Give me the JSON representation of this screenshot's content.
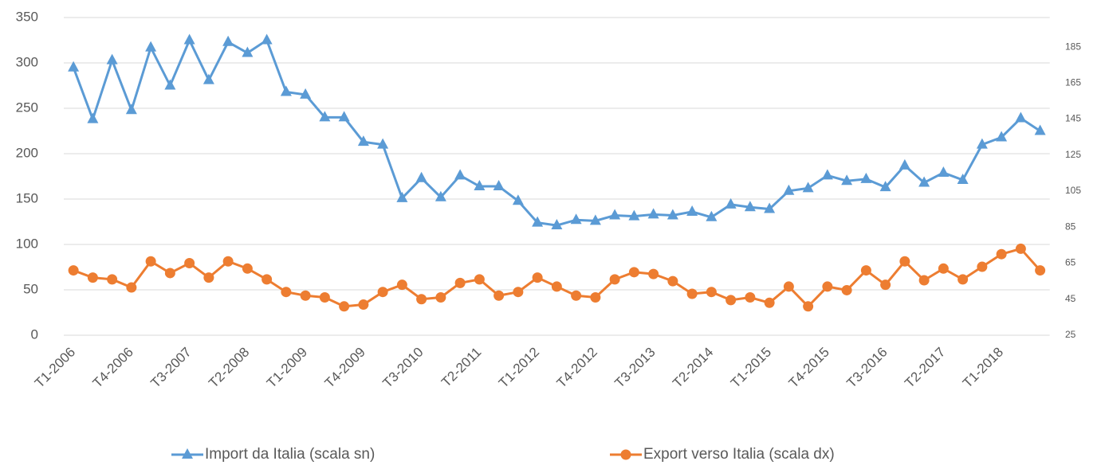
{
  "chart_data": {
    "type": "line",
    "categories": [
      "T1-2006",
      null,
      null,
      "T4-2006",
      null,
      null,
      "T3-2007",
      null,
      null,
      "T2-2008",
      null,
      null,
      "T1-2009",
      null,
      null,
      "T4-2009",
      null,
      null,
      "T3-2010",
      null,
      null,
      "T2-2011",
      null,
      null,
      "T1-2012",
      null,
      null,
      "T4-2012",
      null,
      null,
      "T3-2013",
      null,
      null,
      "T2-2014",
      null,
      null,
      "T1-2015",
      null,
      null,
      "T4-2015",
      null,
      null,
      "T3-2016",
      null,
      null,
      "T2-2017",
      null,
      null,
      "T1-2018",
      null,
      null
    ],
    "series": [
      {
        "name": "Import da Italia (scala sn)",
        "color": "#5b9bd5",
        "marker": "triangle",
        "axis": "y",
        "values": [
          295,
          238,
          303,
          248,
          317,
          275,
          325,
          281,
          323,
          311,
          325,
          268,
          265,
          240,
          240,
          213,
          210,
          151,
          173,
          152,
          176,
          164,
          164,
          148,
          124,
          121,
          127,
          126,
          132,
          131,
          133,
          132,
          136,
          130,
          144,
          141,
          139,
          159,
          162,
          176,
          170,
          172,
          163,
          187,
          168,
          179,
          171,
          210,
          218,
          239,
          225
        ]
      },
      {
        "name": "Export verso Italia (scala dx)",
        "color": "#ed7d31",
        "marker": "circle",
        "axis": "y2",
        "values": [
          61,
          57,
          56,
          51.5,
          66,
          59.5,
          65,
          57,
          66,
          62,
          56,
          49,
          47,
          46,
          41,
          42,
          49,
          53,
          45,
          46,
          54,
          56,
          47,
          49,
          57,
          52,
          47,
          46,
          56,
          60,
          59,
          55,
          48,
          49,
          44.5,
          46,
          43,
          52,
          41,
          52,
          50,
          61,
          53,
          66,
          55.5,
          62,
          56,
          63,
          70,
          73,
          61
        ]
      }
    ],
    "ylim": [
      0,
      350
    ],
    "yticks": [
      0,
      50,
      100,
      150,
      200,
      250,
      300,
      350
    ],
    "y2lim": [
      25,
      201.4
    ],
    "y2ticks": [
      25,
      45,
      65,
      85,
      105,
      125,
      145,
      165,
      185
    ],
    "grid": true,
    "legend": "bottom"
  }
}
